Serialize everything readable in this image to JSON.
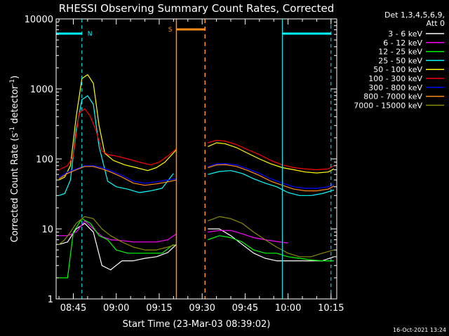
{
  "chart_data": {
    "type": "line",
    "title": "RHESSI Observing Summary Count Rates, Corrected",
    "xlabel": "Start Time (23-Mar-03 08:39:02)",
    "ylabel_main": "Corrected Count Rate (s",
    "ylabel_sup1": "-1",
    "ylabel_mid": " detector",
    "ylabel_sup2": "-1",
    "ylabel_end": ")",
    "footer": "16-Oct-2021 13:24",
    "y_scale": "log",
    "ylim": [
      1,
      10000
    ],
    "xlim": [
      "08:39",
      "10:17"
    ],
    "x_ticks": [
      "08:45",
      "09:00",
      "09:15",
      "09:30",
      "09:45",
      "10:00",
      "10:15"
    ],
    "y_ticks": [
      "1",
      "10",
      "100",
      "1000",
      "10000"
    ],
    "legend_header": [
      "Det 1,3,4,5,6,9,",
      "Att 0"
    ],
    "legend_position": "right",
    "annotations": [
      {
        "label": "N",
        "color": "#00ffff"
      },
      {
        "label": "S",
        "color": "#ff8c1a"
      }
    ],
    "night_periods": [
      [
        "08:39",
        "08:48"
      ],
      [
        "09:58",
        "10:15"
      ]
    ],
    "saa_periods": [
      [
        "09:21",
        "09:31"
      ]
    ],
    "series": [
      {
        "name": "3 - 6 keV",
        "color": "#ffffff",
        "points": [
          [
            "08:40",
            6
          ],
          [
            "08:43",
            6.5
          ],
          [
            "08:46",
            10
          ],
          [
            "08:49",
            12
          ],
          [
            "08:52",
            9
          ],
          [
            "08:55",
            3
          ],
          [
            "08:58",
            2.6
          ],
          [
            "09:02",
            3.5
          ],
          [
            "09:06",
            3.5
          ],
          [
            "09:10",
            3.8
          ],
          [
            "09:14",
            4
          ],
          [
            "09:18",
            4.6
          ],
          [
            "09:21",
            6
          ],
          [
            "09:32",
            10
          ],
          [
            "09:36",
            10
          ],
          [
            "09:40",
            8
          ],
          [
            "09:44",
            6
          ],
          [
            "09:48",
            4.5
          ],
          [
            "09:52",
            3.8
          ],
          [
            "09:56",
            3.5
          ],
          [
            "10:00",
            3.5
          ],
          [
            "10:04",
            3.5
          ],
          [
            "10:08",
            3.5
          ],
          [
            "10:12",
            3.5
          ],
          [
            "10:16",
            4
          ]
        ]
      },
      {
        "name": "6 - 12 keV",
        "color": "#ff00ff",
        "points": [
          [
            "08:40",
            8
          ],
          [
            "08:43",
            8
          ],
          [
            "08:46",
            9
          ],
          [
            "08:49",
            13
          ],
          [
            "08:52",
            10
          ],
          [
            "08:55",
            7.8
          ],
          [
            "08:58",
            7
          ],
          [
            "09:02",
            6.8
          ],
          [
            "09:06",
            6.5
          ],
          [
            "09:10",
            6.5
          ],
          [
            "09:14",
            6.5
          ],
          [
            "09:18",
            7
          ],
          [
            "09:21",
            8.5
          ],
          [
            "09:32",
            9
          ],
          [
            "09:36",
            9.5
          ],
          [
            "09:40",
            9.5
          ],
          [
            "09:44",
            8.5
          ],
          [
            "09:48",
            7.5
          ],
          [
            "09:52",
            7
          ],
          [
            "09:56",
            6.6
          ],
          [
            "10:00",
            6.3
          ]
        ]
      },
      {
        "name": "12 - 25 keV",
        "color": "#00ff00",
        "points": [
          [
            "08:40",
            2
          ],
          [
            "08:43",
            2
          ],
          [
            "08:45",
            9
          ],
          [
            "08:48",
            14
          ],
          [
            "08:51",
            12
          ],
          [
            "08:54",
            8
          ],
          [
            "08:57",
            7
          ],
          [
            "09:00",
            5
          ],
          [
            "09:04",
            4.5
          ],
          [
            "09:08",
            4.5
          ],
          [
            "09:12",
            4.5
          ],
          [
            "09:16",
            4.5
          ],
          [
            "09:20",
            6
          ],
          [
            "09:32",
            7
          ],
          [
            "09:36",
            8
          ],
          [
            "09:40",
            7.5
          ],
          [
            "09:44",
            6.5
          ],
          [
            "09:48",
            5
          ],
          [
            "09:52",
            4.5
          ],
          [
            "09:56",
            4.5
          ],
          [
            "10:00",
            4
          ],
          [
            "10:04",
            3.8
          ],
          [
            "10:08",
            3.6
          ],
          [
            "10:12",
            3.5
          ],
          [
            "10:16",
            3.5
          ]
        ]
      },
      {
        "name": "25 - 50 keV",
        "color": "#00ffff",
        "points": [
          [
            "08:40",
            30
          ],
          [
            "08:42",
            32
          ],
          [
            "08:44",
            50
          ],
          [
            "08:46",
            260
          ],
          [
            "08:48",
            700
          ],
          [
            "08:50",
            800
          ],
          [
            "08:52",
            600
          ],
          [
            "08:54",
            150
          ],
          [
            "08:57",
            48
          ],
          [
            "09:00",
            40
          ],
          [
            "09:04",
            37
          ],
          [
            "09:08",
            33
          ],
          [
            "09:12",
            35
          ],
          [
            "09:16",
            38
          ],
          [
            "09:20",
            62
          ],
          [
            "09:32",
            60
          ],
          [
            "09:36",
            66
          ],
          [
            "09:40",
            68
          ],
          [
            "09:44",
            62
          ],
          [
            "09:48",
            52
          ],
          [
            "09:52",
            45
          ],
          [
            "09:56",
            40
          ],
          [
            "10:00",
            33
          ],
          [
            "10:04",
            30
          ],
          [
            "10:08",
            30
          ],
          [
            "10:12",
            32
          ],
          [
            "10:16",
            36
          ]
        ]
      },
      {
        "name": "50 - 100 keV",
        "color": "#ffff00",
        "points": [
          [
            "08:40",
            50
          ],
          [
            "08:42",
            55
          ],
          [
            "08:44",
            80
          ],
          [
            "08:46",
            400
          ],
          [
            "08:48",
            1400
          ],
          [
            "08:50",
            1600
          ],
          [
            "08:52",
            1200
          ],
          [
            "08:54",
            300
          ],
          [
            "08:56",
            120
          ],
          [
            "08:59",
            95
          ],
          [
            "09:03",
            82
          ],
          [
            "09:07",
            75
          ],
          [
            "09:11",
            68
          ],
          [
            "09:14",
            75
          ],
          [
            "09:17",
            90
          ],
          [
            "09:21",
            135
          ],
          [
            "09:32",
            150
          ],
          [
            "09:35",
            170
          ],
          [
            "09:38",
            165
          ],
          [
            "09:42",
            145
          ],
          [
            "09:46",
            120
          ],
          [
            "09:50",
            100
          ],
          [
            "09:54",
            85
          ],
          [
            "09:58",
            75
          ],
          [
            "10:02",
            70
          ],
          [
            "10:06",
            65
          ],
          [
            "10:10",
            63
          ],
          [
            "10:14",
            65
          ],
          [
            "10:16",
            72
          ]
        ]
      },
      {
        "name": "100 - 300 keV",
        "color": "#ff0000",
        "points": [
          [
            "08:40",
            70
          ],
          [
            "08:43",
            80
          ],
          [
            "08:45",
            110
          ],
          [
            "08:47",
            450
          ],
          [
            "08:49",
            520
          ],
          [
            "08:51",
            400
          ],
          [
            "08:53",
            250
          ],
          [
            "08:55",
            130
          ],
          [
            "08:57",
            115
          ],
          [
            "09:00",
            110
          ],
          [
            "09:04",
            100
          ],
          [
            "09:08",
            90
          ],
          [
            "09:12",
            82
          ],
          [
            "09:15",
            90
          ],
          [
            "09:18",
            110
          ],
          [
            "09:21",
            140
          ],
          [
            "09:32",
            170
          ],
          [
            "09:35",
            185
          ],
          [
            "09:38",
            180
          ],
          [
            "09:42",
            160
          ],
          [
            "09:46",
            135
          ],
          [
            "09:50",
            115
          ],
          [
            "09:54",
            95
          ],
          [
            "09:58",
            82
          ],
          [
            "10:02",
            75
          ],
          [
            "10:06",
            72
          ],
          [
            "10:10",
            70
          ],
          [
            "10:14",
            72
          ],
          [
            "10:16",
            80
          ]
        ]
      },
      {
        "name": "300 - 800 keV",
        "color": "#0000ff",
        "points": [
          [
            "08:40",
            55
          ],
          [
            "08:43",
            65
          ],
          [
            "08:46",
            72
          ],
          [
            "08:49",
            80
          ],
          [
            "08:52",
            80
          ],
          [
            "08:55",
            75
          ],
          [
            "08:58",
            68
          ],
          [
            "09:02",
            58
          ],
          [
            "09:06",
            48
          ],
          [
            "09:10",
            45
          ],
          [
            "09:14",
            47
          ],
          [
            "09:18",
            50
          ],
          [
            "09:21",
            52
          ],
          [
            "09:32",
            78
          ],
          [
            "09:35",
            85
          ],
          [
            "09:38",
            86
          ],
          [
            "09:42",
            82
          ],
          [
            "09:46",
            72
          ],
          [
            "09:50",
            62
          ],
          [
            "09:54",
            52
          ],
          [
            "09:58",
            45
          ],
          [
            "10:02",
            40
          ],
          [
            "10:06",
            38
          ],
          [
            "10:10",
            38
          ],
          [
            "10:14",
            40
          ],
          [
            "10:16",
            44
          ]
        ]
      },
      {
        "name": "800 - 7000 keV",
        "color": "#ff8c1a",
        "points": [
          [
            "08:40",
            52
          ],
          [
            "08:43",
            62
          ],
          [
            "08:46",
            70
          ],
          [
            "08:49",
            78
          ],
          [
            "08:52",
            78
          ],
          [
            "08:55",
            72
          ],
          [
            "08:58",
            65
          ],
          [
            "09:02",
            55
          ],
          [
            "09:06",
            45
          ],
          [
            "09:10",
            42
          ],
          [
            "09:14",
            44
          ],
          [
            "09:18",
            47
          ],
          [
            "09:21",
            50
          ],
          [
            "09:32",
            75
          ],
          [
            "09:35",
            82
          ],
          [
            "09:38",
            83
          ],
          [
            "09:42",
            78
          ],
          [
            "09:46",
            68
          ],
          [
            "09:50",
            58
          ],
          [
            "09:54",
            48
          ],
          [
            "09:58",
            42
          ],
          [
            "10:02",
            37
          ],
          [
            "10:06",
            35
          ],
          [
            "10:10",
            35
          ],
          [
            "10:14",
            37
          ],
          [
            "10:16",
            41
          ]
        ]
      },
      {
        "name": "7000 - 15000 keV",
        "color": "#8b8b00",
        "points": [
          [
            "08:40",
            6
          ],
          [
            "08:42",
            7
          ],
          [
            "08:44",
            9
          ],
          [
            "08:46",
            12
          ],
          [
            "08:49",
            15
          ],
          [
            "08:52",
            14
          ],
          [
            "08:55",
            10
          ],
          [
            "08:58",
            8
          ],
          [
            "09:02",
            6.5
          ],
          [
            "09:06",
            5.5
          ],
          [
            "09:10",
            5
          ],
          [
            "09:14",
            5
          ],
          [
            "09:18",
            5.5
          ],
          [
            "09:21",
            6
          ],
          [
            "09:32",
            13
          ],
          [
            "09:36",
            15
          ],
          [
            "09:40",
            14
          ],
          [
            "09:44",
            12
          ],
          [
            "09:48",
            9
          ],
          [
            "09:52",
            7
          ],
          [
            "09:56",
            5.5
          ],
          [
            "10:00",
            4.5
          ],
          [
            "10:04",
            4
          ],
          [
            "10:08",
            4
          ],
          [
            "10:12",
            4.5
          ],
          [
            "10:16",
            5
          ]
        ]
      }
    ]
  }
}
